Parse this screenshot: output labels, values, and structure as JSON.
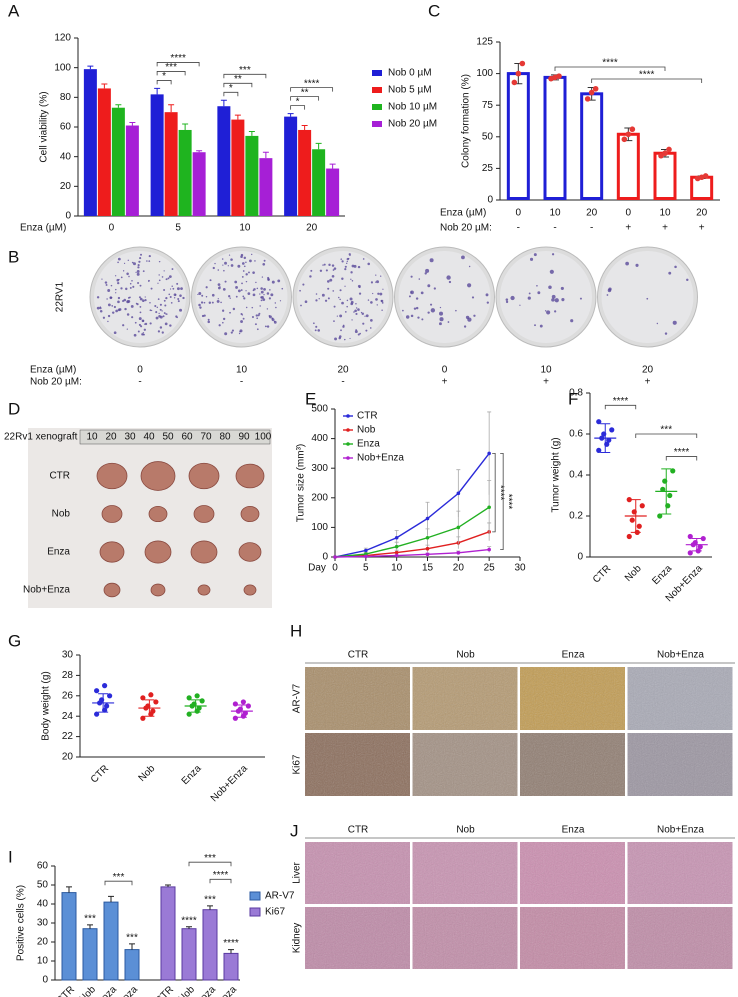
{
  "panel_letters": [
    "A",
    "B",
    "C",
    "D",
    "E",
    "F",
    "G",
    "H",
    "I",
    "J"
  ],
  "chart_data": [
    {
      "type": "bar",
      "ylabel": "Cell viability (%)",
      "xlabel": "Enza (µM)",
      "categories": [
        "0",
        "5",
        "10",
        "20"
      ],
      "series": [
        {
          "name": "Nob 0 µM",
          "color": "#1f1fd6",
          "values": [
            99,
            82,
            74,
            67
          ],
          "errors": [
            2,
            4,
            4,
            2
          ]
        },
        {
          "name": "Nob 5 µM",
          "color": "#ee1c1c",
          "values": [
            86,
            70,
            65,
            58
          ],
          "errors": [
            3,
            5,
            3,
            3
          ]
        },
        {
          "name": "Nob 10 µM",
          "color": "#1fb41f",
          "values": [
            73,
            58,
            54,
            45
          ],
          "errors": [
            2,
            4,
            3,
            4
          ]
        },
        {
          "name": "Nob 20 µM",
          "color": "#a61fd6",
          "values": [
            61,
            43,
            39,
            32
          ],
          "errors": [
            2,
            1,
            4,
            3
          ]
        }
      ],
      "ylim": [
        0,
        120
      ],
      "yticks": [
        0,
        20,
        40,
        60,
        80,
        100,
        120
      ],
      "significance": [
        null,
        [
          "*",
          "***",
          "****"
        ],
        [
          "*",
          "**",
          "***"
        ],
        [
          "*",
          "**",
          "****"
        ]
      ]
    },
    {
      "type": "bar",
      "ylabel": "Colony formation (%)",
      "row_labels": [
        "Enza (µM)",
        "Nob 20 µM:"
      ],
      "categories": [
        "0",
        "10",
        "20",
        "0",
        "10",
        "20"
      ],
      "nob_row": [
        "-",
        "-",
        "-",
        "+",
        "+",
        "+"
      ],
      "values": [
        100,
        97,
        84,
        52,
        37,
        18
      ],
      "errors": [
        8,
        2,
        5,
        5,
        3,
        1
      ],
      "points": [
        [
          93,
          100,
          108
        ],
        [
          96,
          97,
          98
        ],
        [
          80,
          85,
          88
        ],
        [
          48,
          52,
          56
        ],
        [
          35,
          37,
          40
        ],
        [
          17,
          18,
          19
        ]
      ],
      "colors": [
        "#1f1fd6",
        "#1f1fd6",
        "#1f1fd6",
        "#ee1c1c",
        "#ee1c1c",
        "#ee1c1c"
      ],
      "point_color": "#e53935",
      "ylim": [
        0,
        125
      ],
      "yticks": [
        0,
        25,
        50,
        75,
        100,
        125
      ],
      "significance": [
        "****",
        "****"
      ]
    },
    {
      "type": "line",
      "ylabel": "Tumor size (mm³)",
      "xlabel": "Day",
      "x": [
        0,
        5,
        10,
        15,
        20,
        25
      ],
      "series": [
        {
          "name": "CTR",
          "color": "#2b2bd9",
          "values": [
            0,
            22,
            65,
            130,
            215,
            350
          ],
          "errors": [
            0,
            8,
            25,
            55,
            80,
            140
          ]
        },
        {
          "name": "Nob",
          "color": "#e02020",
          "values": [
            0,
            5,
            15,
            28,
            48,
            85
          ],
          "errors": [
            0,
            3,
            8,
            12,
            20,
            30
          ]
        },
        {
          "name": "Enza",
          "color": "#22b022",
          "values": [
            0,
            10,
            35,
            65,
            100,
            168
          ],
          "errors": [
            0,
            5,
            15,
            30,
            55,
            90
          ]
        },
        {
          "name": "Nob+Enza",
          "color": "#b020d0",
          "values": [
            0,
            2,
            5,
            9,
            14,
            25
          ],
          "errors": [
            0,
            1,
            2,
            4,
            6,
            10
          ]
        }
      ],
      "xlim": [
        0,
        30
      ],
      "xticks": [
        0,
        5,
        10,
        15,
        20,
        25,
        30
      ],
      "ylim": [
        0,
        500
      ],
      "yticks": [
        0,
        100,
        200,
        300,
        400,
        500
      ],
      "significance": [
        "****",
        "****"
      ]
    },
    {
      "type": "dot",
      "ylabel": "Tumor weight (g)",
      "categories": [
        "CTR",
        "Nob",
        "Enza",
        "Nob+Enza"
      ],
      "colors": [
        "#2b2bd9",
        "#e02020",
        "#22b022",
        "#b020d0"
      ],
      "values": [
        0.58,
        0.2,
        0.32,
        0.06
      ],
      "errors": [
        0.07,
        0.08,
        0.11,
        0.03
      ],
      "points": [
        [
          0.52,
          0.55,
          0.57,
          0.58,
          0.6,
          0.62,
          0.66
        ],
        [
          0.1,
          0.12,
          0.15,
          0.18,
          0.22,
          0.25,
          0.28
        ],
        [
          0.2,
          0.25,
          0.3,
          0.33,
          0.37,
          0.42
        ],
        [
          0.02,
          0.03,
          0.05,
          0.06,
          0.07,
          0.09,
          0.1
        ]
      ],
      "ylim": [
        0,
        0.8
      ],
      "yticks": [
        0,
        0.2,
        0.4,
        0.6,
        0.8
      ],
      "significance": [
        "****",
        "***",
        "****"
      ]
    },
    {
      "type": "dot",
      "ylabel": "Body weight (g)",
      "categories": [
        "CTR",
        "Nob",
        "Enza",
        "Nob+Enza"
      ],
      "colors": [
        "#2b2bd9",
        "#e02020",
        "#22b022",
        "#b020d0"
      ],
      "values": [
        25.3,
        24.8,
        25.0,
        24.5
      ],
      "errors": [
        0.9,
        0.8,
        0.6,
        0.6
      ],
      "points": [
        [
          24.2,
          24.6,
          25.0,
          25.3,
          25.6,
          26.0,
          26.5,
          27.0
        ],
        [
          23.8,
          24.2,
          24.5,
          24.8,
          25.0,
          25.4,
          25.8,
          26.1
        ],
        [
          24.2,
          24.5,
          24.8,
          25.0,
          25.2,
          25.5,
          25.8,
          26.0
        ],
        [
          23.8,
          24.0,
          24.3,
          24.5,
          24.7,
          25.0,
          25.2,
          25.4
        ]
      ],
      "ylim": [
        20,
        30
      ],
      "yticks": [
        20,
        22,
        24,
        26,
        28,
        30
      ]
    },
    {
      "type": "column",
      "ylabel": "Positive cells (%)",
      "categories": [
        "CTR",
        "Nob",
        "Enza",
        "Nob+Enza"
      ],
      "series": [
        {
          "name": "AR-V7",
          "color": "#5b8fd6",
          "edge": "#2b5aa0",
          "values": [
            46,
            27,
            41,
            16
          ],
          "errors": [
            3,
            2,
            3,
            3
          ],
          "stars": [
            null,
            "***",
            null,
            "***"
          ],
          "significance": [
            "***"
          ]
        },
        {
          "name": "Ki67",
          "color": "#9a7ad6",
          "edge": "#5a3aa0",
          "values": [
            49,
            27,
            37,
            14
          ],
          "errors": [
            1,
            1,
            2,
            2
          ],
          "stars": [
            null,
            "****",
            "***",
            "****"
          ],
          "significance": [
            "***",
            "****"
          ]
        }
      ],
      "ylim": [
        0,
        60
      ],
      "yticks": [
        0,
        10,
        20,
        30,
        40,
        50,
        60
      ]
    }
  ],
  "plates": {
    "cell_line": "22RV1",
    "row_labels": [
      "Enza (µM)",
      "Nob 20 µM:"
    ],
    "enza": [
      "0",
      "10",
      "20",
      "0",
      "10",
      "20"
    ],
    "nob": [
      "-",
      "-",
      "-",
      "+",
      "+",
      "+"
    ]
  },
  "xenograft": {
    "title": "22Rv1 xenograft",
    "ruler": [
      "10",
      "20",
      "30",
      "40",
      "50",
      "60",
      "70",
      "80",
      "90",
      "100"
    ],
    "rows": [
      "CTR",
      "Nob",
      "Enza",
      "Nob+Enza"
    ]
  },
  "ihc": {
    "columns": [
      "CTR",
      "Nob",
      "Enza",
      "Nob+Enza"
    ],
    "rows": [
      "AR-V7",
      "Ki67"
    ]
  },
  "histology": {
    "columns": [
      "CTR",
      "Nob",
      "Enza",
      "Nob+Enza"
    ],
    "rows": [
      "Liver",
      "Kidney"
    ]
  }
}
